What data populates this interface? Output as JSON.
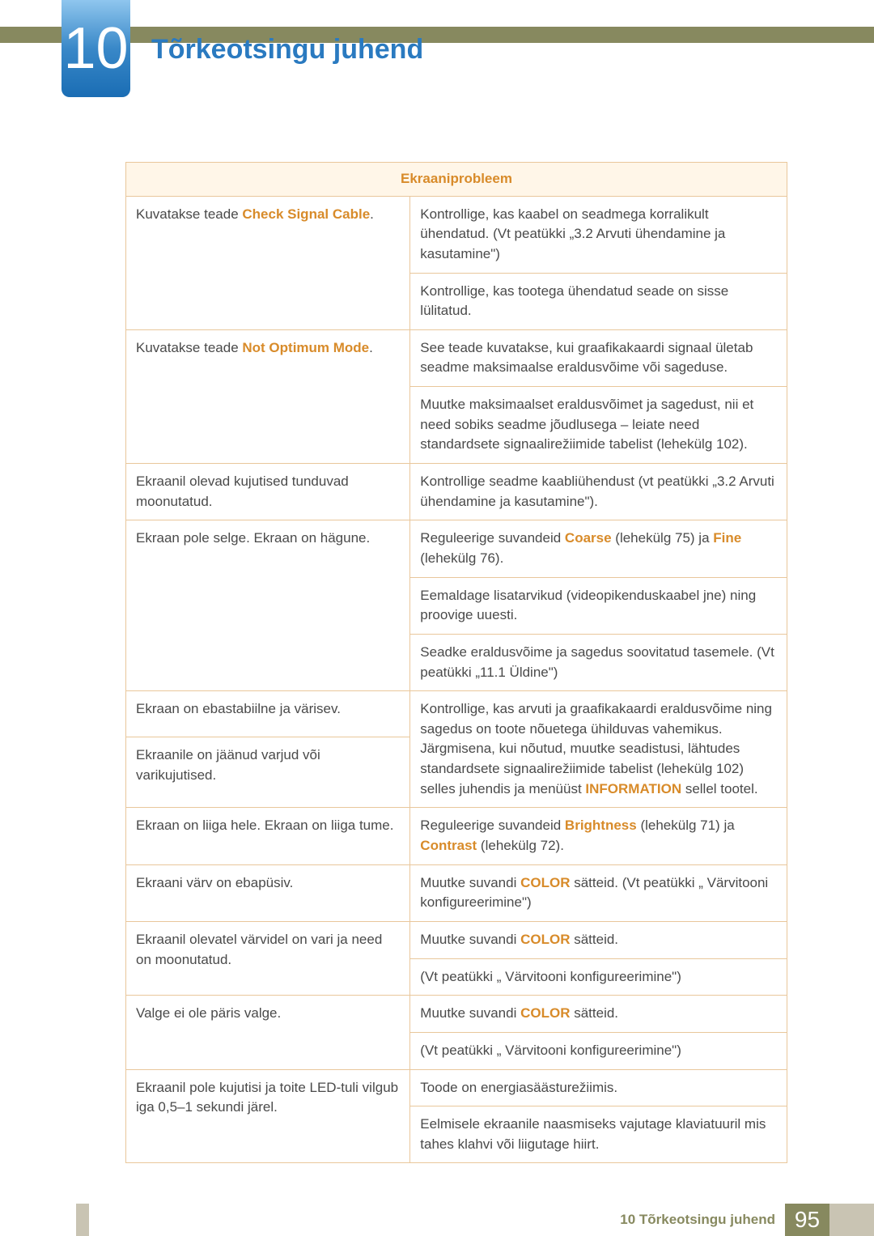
{
  "chapter_number": "10",
  "title": "Tõrkeotsingu juhend",
  "table_header": "Ekraaniprobleem",
  "footer_label": "10 Tõrkeotsingu juhend",
  "page_number": "95",
  "colors": {
    "accent_orange": "#d88b2a",
    "border": "#e9c79b",
    "header_bg": "#fff6e8",
    "olive": "#87895f",
    "blue": "#2a7ac0",
    "footer_gray": "#c9c4b3"
  },
  "rows": {
    "r1_left_a": "Kuvatakse teade ",
    "r1_left_b": "Check Signal Cable",
    "r1_left_c": ".",
    "r1_right1": "Kontrollige, kas kaabel on seadmega korralikult ühendatud. (Vt peatükki „3.2 Arvuti ühendamine ja kasutamine\")",
    "r1_right2": "Kontrollige, kas tootega ühendatud seade on sisse lülitatud.",
    "r2_left_a": "Kuvatakse teade ",
    "r2_left_b": "Not Optimum Mode",
    "r2_left_c": ".",
    "r2_right1": "See teade kuvatakse, kui graafikakaardi signaal ületab seadme maksimaalse eraldusvõime või sageduse.",
    "r2_right2": "Muutke maksimaalset eraldusvõimet ja sagedust, nii et need sobiks seadme jõudlusega – leiate need standardsete signaalirežiimide tabelist (lehekülg 102).",
    "r3_left": "Ekraanil olevad kujutised tunduvad moonutatud.",
    "r3_right": "Kontrollige seadme kaabliühendust (vt peatükki „3.2 Arvuti ühendamine ja kasutamine\").",
    "r4_left": "Ekraan pole selge. Ekraan on hägune.",
    "r4_right1_a": "Reguleerige suvandeid ",
    "r4_right1_b": "Coarse",
    "r4_right1_c": " (lehekülg 75) ja ",
    "r4_right1_d": "Fine",
    "r4_right1_e": " (lehekülg 76).",
    "r4_right2": "Eemaldage lisatarvikud (videopikenduskaabel jne) ning proovige uuesti.",
    "r4_right3": "Seadke eraldusvõime ja sagedus soovitatud tasemele. (Vt peatükki „11.1 Üldine\")",
    "r5_left": "Ekraan on ebastabiilne ja värisev.",
    "r6_left": "Ekraanile on jäänud varjud või varikujutised.",
    "r56_right_a": "Kontrollige, kas arvuti ja graafikakaardi eraldusvõime ning sagedus on toote nõuetega ühilduvas vahemikus. Järgmisena, kui nõutud, muutke seadistusi, lähtudes standardsete signaalirežiimide tabelist (lehekülg 102) selles juhendis ja menüüst ",
    "r56_right_b": "INFORMATION",
    "r56_right_c": " sellel tootel.",
    "r7_left": "Ekraan on liiga hele. Ekraan on liiga tume.",
    "r7_right_a": "Reguleerige suvandeid ",
    "r7_right_b": "Brightness",
    "r7_right_c": " (lehekülg 71) ja ",
    "r7_right_d": "Contrast",
    "r7_right_e": " (lehekülg 72).",
    "r8_left": "Ekraani värv on ebapüsiv.",
    "r8_right_a": "Muutke suvandi ",
    "r8_right_b": "COLOR",
    "r8_right_c": " sätteid. (Vt peatükki „ Värvitooni konfigureerimine\")",
    "r9_left": "Ekraanil olevatel värvidel on vari ja need on moonutatud.",
    "r9_right1_a": "Muutke suvandi ",
    "r9_right1_b": "COLOR",
    "r9_right1_c": " sätteid.",
    "r9_right2": "(Vt peatükki „ Värvitooni konfigureerimine\")",
    "r10_left": "Valge ei ole päris valge.",
    "r10_right1_a": "Muutke suvandi ",
    "r10_right1_b": "COLOR",
    "r10_right1_c": " sätteid.",
    "r10_right2": "(Vt peatükki „ Värvitooni konfigureerimine\")",
    "r11_left": "Ekraanil pole kujutisi ja toite LED-tuli vilgub iga 0,5–1 sekundi järel.",
    "r11_right1": "Toode on energiasäästurežiimis.",
    "r11_right2": "Eelmisele ekraanile naasmiseks vajutage klaviatuuril mis tahes klahvi või liigutage hiirt."
  }
}
